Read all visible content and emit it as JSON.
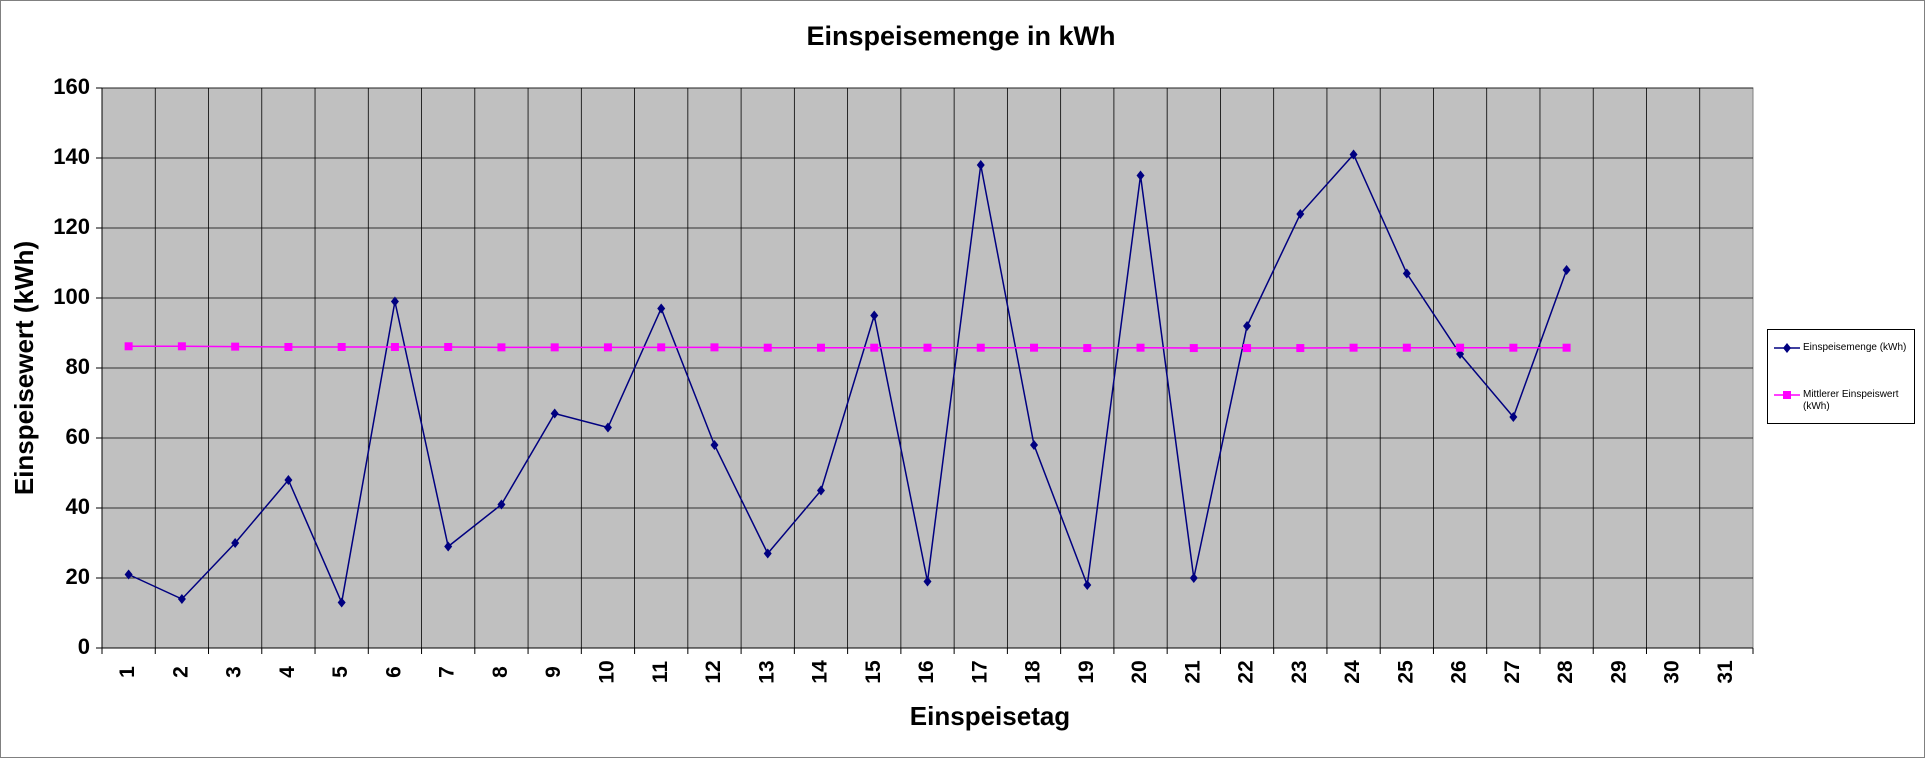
{
  "chart_data": {
    "type": "line",
    "title": "Einspeisemenge in kWh",
    "x_label": "Einspeisetag",
    "y_label": "Einspeisewert  (kWh)",
    "categories": [
      "1",
      "2",
      "3",
      "4",
      "5",
      "6",
      "7",
      "8",
      "9",
      "10",
      "11",
      "12",
      "13",
      "14",
      "15",
      "16",
      "17",
      "18",
      "19",
      "20",
      "21",
      "22",
      "23",
      "24",
      "25",
      "26",
      "27",
      "28",
      "29",
      "30",
      "31"
    ],
    "series": [
      {
        "name": "Einspeisemenge (kWh)",
        "color": "#000080",
        "marker": "diamond",
        "values": [
          21,
          14,
          30,
          48,
          13,
          99,
          29,
          41,
          67,
          63,
          97,
          58,
          27,
          45,
          95,
          19,
          138,
          58,
          18,
          135,
          20,
          92,
          124,
          141,
          107,
          84,
          66,
          108,
          null,
          null,
          null
        ]
      },
      {
        "name": "Mittlerer Einspeiswert (kWh)",
        "color": "#ff00ff",
        "marker": "square",
        "values": [
          86.2,
          86.2,
          86.1,
          86.0,
          86.0,
          86.0,
          86.0,
          85.9,
          85.9,
          85.9,
          85.9,
          85.9,
          85.8,
          85.8,
          85.8,
          85.8,
          85.8,
          85.8,
          85.7,
          85.8,
          85.7,
          85.7,
          85.7,
          85.8,
          85.8,
          85.8,
          85.8,
          85.8,
          null,
          null,
          null
        ]
      }
    ],
    "ylim": [
      0,
      160
    ],
    "yticks": [
      0,
      20,
      40,
      60,
      80,
      100,
      120,
      140,
      160
    ],
    "grid": true,
    "legend": "right"
  }
}
